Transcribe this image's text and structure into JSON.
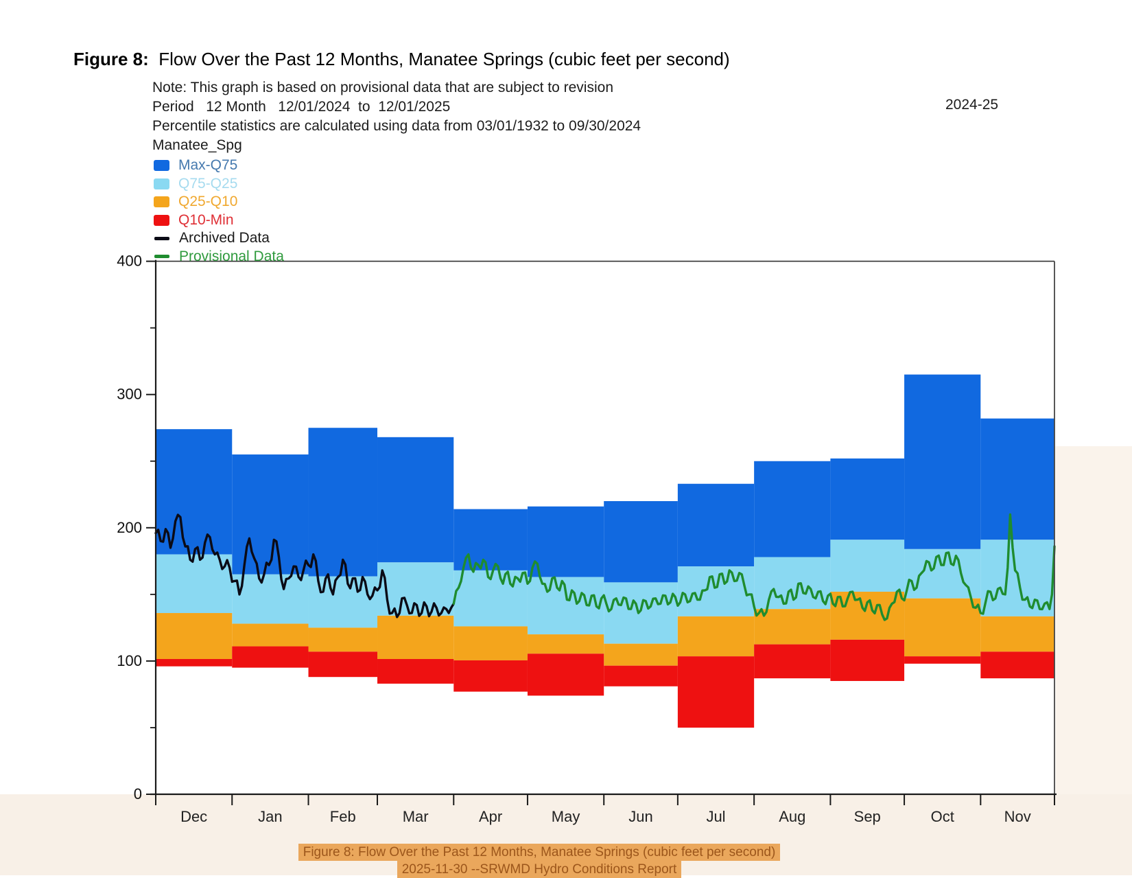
{
  "page": {
    "title_bold": "Figure 8:",
    "title_rest": "  Flow Over the Past 12 Months, Manatee Springs (cubic feet per second)",
    "water_year": "2024-25",
    "notes": [
      "Note: This graph is based on provisional data that are subject to revision",
      "Period   12 Month   12/01/2024  to  12/01/2025",
      "Percentile statistics are calculated using data from 03/01/1932 to 09/30/2024",
      "Manatee_Spg"
    ],
    "caption_line1": "Figure 8: Flow Over the Past 12 Months, Manatee Springs (cubic feet per second)",
    "caption_line2": "2025-11-30 --SRWMD Hydro Conditions Report"
  },
  "colors": {
    "max_q75": "#1169E0",
    "q75_q25": "#8AD9F2",
    "q25_q10": "#F4A51C",
    "q10_min": "#EE1111",
    "archived": "#0B0B16",
    "provisional": "#1F8C2F",
    "axis": "#1a1a1a",
    "right_border": "#444444",
    "caption_bg": "#EAA75C",
    "caption_text": "#9C561B",
    "margin_tint": "#F8F0E7",
    "right_tint": "#FAF3EB"
  },
  "legend": {
    "items": [
      {
        "label": "Max-Q75",
        "swatch": "box",
        "color_key": "max_q75",
        "label_color": "#4579AE"
      },
      {
        "label": "Q75-Q25",
        "swatch": "box",
        "color_key": "q75_q25",
        "label_color": "#A6DBEF"
      },
      {
        "label": "Q25-Q10",
        "swatch": "box",
        "color_key": "q25_q10",
        "label_color": "#F0A82F"
      },
      {
        "label": "Q10-Min",
        "swatch": "box",
        "color_key": "q10_min",
        "label_color": "#DF2F35"
      },
      {
        "label": "Archived Data",
        "swatch": "line",
        "color_key": "archived",
        "label_color": "#1A1A1A"
      },
      {
        "label": "Provisional Data",
        "swatch": "line",
        "color_key": "provisional",
        "label_color": "#2F9A3D"
      }
    ]
  },
  "chart_data": {
    "type": "area-band-step-with-lines",
    "title": "Flow Over the Past 12 Months, Manatee Springs (cubic feet per second)",
    "xlabel": "",
    "ylabel": "",
    "ylim": [
      0,
      400
    ],
    "y_ticks_major": [
      0,
      100,
      200,
      300,
      400
    ],
    "y_ticks_minor": [
      50,
      150,
      250,
      350
    ],
    "months": [
      "Dec",
      "Jan",
      "Feb",
      "Mar",
      "Apr",
      "May",
      "Jun",
      "Jul",
      "Aug",
      "Sep",
      "Oct",
      "Nov"
    ],
    "days_in_month": [
      31,
      31,
      28,
      31,
      30,
      31,
      30,
      31,
      31,
      30,
      31,
      30
    ],
    "bands": {
      "max": [
        274,
        255,
        275,
        268,
        214,
        216,
        220,
        233,
        250,
        252,
        315,
        282
      ],
      "q75": [
        180,
        165,
        163.5,
        174,
        168,
        163,
        159,
        171,
        178,
        191,
        184,
        191
      ],
      "q25": [
        136,
        128,
        125,
        134,
        126,
        120,
        113,
        133.5,
        139,
        152,
        147,
        133.5
      ],
      "q10": [
        101.5,
        111,
        107,
        101.5,
        100.5,
        105.5,
        96.5,
        103.5,
        112.5,
        116,
        103.5,
        107
      ],
      "min": [
        96,
        95,
        88,
        83,
        77,
        74,
        81,
        50,
        87,
        85,
        98,
        87
      ]
    },
    "line_jitter": {
      "step_days": 1.5,
      "archived_amp": 5.5,
      "provisional_amp": 4.5
    },
    "archived_line_day_value": [
      [
        0,
        196
      ],
      [
        2,
        190
      ],
      [
        4,
        199
      ],
      [
        6,
        185
      ],
      [
        8,
        205
      ],
      [
        10,
        208
      ],
      [
        12,
        186
      ],
      [
        14,
        176
      ],
      [
        16,
        184
      ],
      [
        18,
        176
      ],
      [
        20,
        189
      ],
      [
        22,
        193
      ],
      [
        24,
        180
      ],
      [
        26,
        176
      ],
      [
        28,
        171
      ],
      [
        30,
        170
      ],
      [
        32,
        160
      ],
      [
        34,
        150
      ],
      [
        36,
        172
      ],
      [
        38,
        192
      ],
      [
        40,
        177
      ],
      [
        42,
        162
      ],
      [
        44,
        165
      ],
      [
        46,
        172
      ],
      [
        48,
        191
      ],
      [
        50,
        178
      ],
      [
        52,
        154
      ],
      [
        54,
        162
      ],
      [
        56,
        171
      ],
      [
        58,
        163
      ],
      [
        60,
        168
      ],
      [
        62,
        172
      ],
      [
        64,
        180
      ],
      [
        66,
        160
      ],
      [
        68,
        152
      ],
      [
        70,
        165
      ],
      [
        72,
        150
      ],
      [
        74,
        163
      ],
      [
        76,
        176
      ],
      [
        78,
        158
      ],
      [
        80,
        162
      ],
      [
        82,
        152
      ],
      [
        84,
        163
      ],
      [
        86,
        150
      ],
      [
        88,
        149
      ],
      [
        90,
        153
      ],
      [
        92,
        168
      ],
      [
        94,
        146
      ],
      [
        96,
        136
      ],
      [
        98,
        133
      ],
      [
        100,
        147
      ],
      [
        102,
        142
      ],
      [
        104,
        136
      ],
      [
        106,
        142
      ],
      [
        108,
        136
      ],
      [
        110,
        141
      ],
      [
        112,
        137
      ],
      [
        114,
        140
      ],
      [
        116,
        136
      ],
      [
        118,
        139
      ],
      [
        120,
        140
      ],
      [
        121,
        143
      ]
    ],
    "provisional_line_day_value": [
      [
        121,
        143
      ],
      [
        123,
        155
      ],
      [
        125,
        170
      ],
      [
        127,
        180
      ],
      [
        129,
        167
      ],
      [
        131,
        172
      ],
      [
        133,
        176
      ],
      [
        135,
        163
      ],
      [
        137,
        168
      ],
      [
        139,
        171
      ],
      [
        141,
        158
      ],
      [
        143,
        167
      ],
      [
        145,
        156
      ],
      [
        147,
        162
      ],
      [
        149,
        166
      ],
      [
        151,
        158
      ],
      [
        153,
        170
      ],
      [
        155,
        173
      ],
      [
        157,
        158
      ],
      [
        159,
        152
      ],
      [
        161,
        162
      ],
      [
        163,
        155
      ],
      [
        165,
        160
      ],
      [
        167,
        146
      ],
      [
        169,
        153
      ],
      [
        171,
        143
      ],
      [
        173,
        151
      ],
      [
        175,
        142
      ],
      [
        177,
        149
      ],
      [
        179,
        141
      ],
      [
        181,
        147
      ],
      [
        183,
        143
      ],
      [
        185,
        139
      ],
      [
        187,
        147
      ],
      [
        189,
        142
      ],
      [
        191,
        147
      ],
      [
        193,
        139
      ],
      [
        195,
        143
      ],
      [
        197,
        138
      ],
      [
        199,
        145
      ],
      [
        201,
        141
      ],
      [
        203,
        147
      ],
      [
        205,
        143
      ],
      [
        207,
        149
      ],
      [
        209,
        144
      ],
      [
        211,
        148
      ],
      [
        213,
        144
      ],
      [
        215,
        150
      ],
      [
        217,
        145
      ],
      [
        219,
        151
      ],
      [
        221,
        146
      ],
      [
        223,
        153
      ],
      [
        225,
        163
      ],
      [
        227,
        155
      ],
      [
        229,
        165
      ],
      [
        231,
        158
      ],
      [
        233,
        168
      ],
      [
        235,
        160
      ],
      [
        237,
        166
      ],
      [
        239,
        157
      ],
      [
        241,
        150
      ],
      [
        243,
        141
      ],
      [
        245,
        136
      ],
      [
        247,
        134
      ],
      [
        249,
        146
      ],
      [
        251,
        154
      ],
      [
        253,
        148
      ],
      [
        255,
        143
      ],
      [
        257,
        152
      ],
      [
        259,
        146
      ],
      [
        261,
        158
      ],
      [
        263,
        151
      ],
      [
        265,
        156
      ],
      [
        267,
        148
      ],
      [
        269,
        152
      ],
      [
        271,
        145
      ],
      [
        273,
        149
      ],
      [
        275,
        143
      ],
      [
        277,
        148
      ],
      [
        279,
        141
      ],
      [
        281,
        147
      ],
      [
        283,
        152
      ],
      [
        285,
        146
      ],
      [
        287,
        140
      ],
      [
        289,
        144
      ],
      [
        291,
        138
      ],
      [
        293,
        142
      ],
      [
        295,
        135
      ],
      [
        297,
        132
      ],
      [
        299,
        143
      ],
      [
        301,
        152
      ],
      [
        303,
        147
      ],
      [
        305,
        153
      ],
      [
        307,
        160
      ],
      [
        309,
        155
      ],
      [
        311,
        166
      ],
      [
        313,
        175
      ],
      [
        315,
        168
      ],
      [
        317,
        178
      ],
      [
        319,
        172
      ],
      [
        321,
        181
      ],
      [
        323,
        173
      ],
      [
        325,
        179
      ],
      [
        327,
        166
      ],
      [
        329,
        157
      ],
      [
        331,
        148
      ],
      [
        333,
        140
      ],
      [
        335,
        136
      ],
      [
        337,
        144
      ],
      [
        339,
        152
      ],
      [
        341,
        147
      ],
      [
        343,
        155
      ],
      [
        345,
        150
      ],
      [
        346,
        170
      ],
      [
        347,
        210
      ],
      [
        348,
        185
      ],
      [
        349,
        168
      ],
      [
        351,
        155
      ],
      [
        353,
        146
      ],
      [
        355,
        141
      ],
      [
        357,
        146
      ],
      [
        359,
        139
      ],
      [
        361,
        143
      ],
      [
        363,
        139
      ],
      [
        364,
        150
      ],
      [
        365,
        186
      ]
    ]
  }
}
